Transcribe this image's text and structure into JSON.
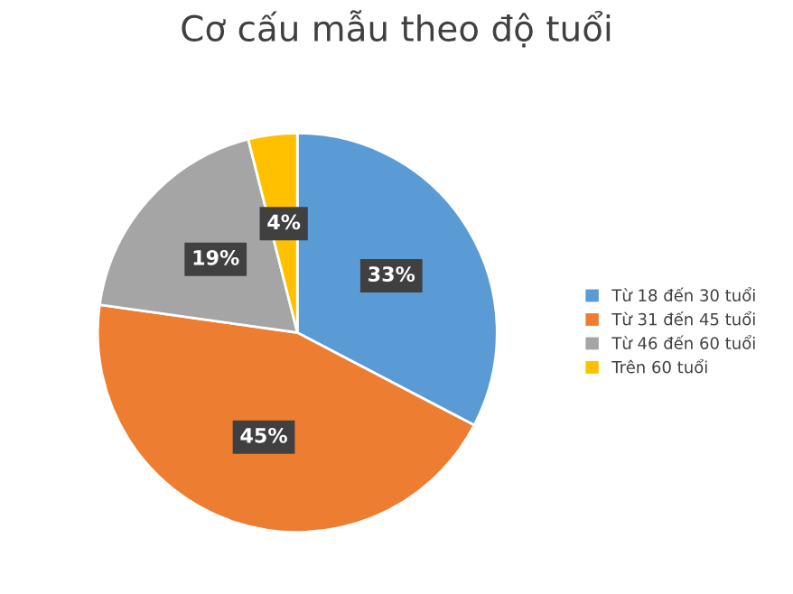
{
  "chart_data": {
    "type": "pie",
    "title": "Cơ cấu mẫu theo độ tuổi",
    "categories": [
      "Từ 18 đến 30 tuổi",
      "Từ 31 đến 45 tuổi",
      "Từ 46 đến 60 tuổi",
      "Trên 60 tuổi"
    ],
    "values": [
      33,
      45,
      19,
      4
    ],
    "colors": [
      "#5b9bd5",
      "#ed7d31",
      "#a5a5a5",
      "#ffc000"
    ],
    "value_labels": [
      "33%",
      "45%",
      "19%",
      "4%"
    ],
    "legend": "right"
  }
}
